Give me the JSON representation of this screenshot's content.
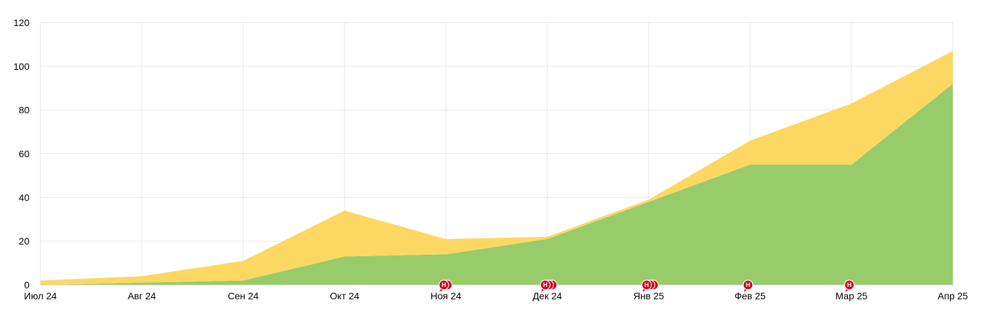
{
  "chart_data": {
    "type": "area",
    "stacked": true,
    "categories": [
      "Июл 24",
      "Авг 24",
      "Сен 24",
      "Окт 24",
      "Ноя 24",
      "Дек 24",
      "Янв 25",
      "Фев 25",
      "Мар 25",
      "Апр 25"
    ],
    "series": [
      {
        "color": "#98cb6a",
        "values": [
          0,
          1,
          2,
          13,
          14,
          21,
          38,
          55,
          55,
          92
        ]
      },
      {
        "color": "#fcd863",
        "values": [
          2,
          3,
          9,
          21,
          7,
          1,
          1,
          11,
          28,
          15
        ]
      }
    ],
    "stacked_totals": [
      2,
      4,
      11,
      34,
      21,
      22,
      39,
      66,
      83,
      107
    ],
    "ylim": [
      0,
      120
    ],
    "yticks": [
      "0",
      "20",
      "40",
      "60",
      "80",
      "100",
      "120"
    ],
    "grid": true,
    "legend": "none",
    "annotations": [
      {
        "category": "Ноя 24",
        "label": "Н",
        "stack": 2
      },
      {
        "category": "Дек 24",
        "label": "Н",
        "stack": 3
      },
      {
        "category": "Янв 25",
        "label": "Н",
        "stack": 3
      },
      {
        "category": "Фев 25",
        "label": "Н",
        "stack": 1
      },
      {
        "category": "Мар 25",
        "label": "Н",
        "stack": 1
      }
    ],
    "marker_color": "#d0021b"
  }
}
